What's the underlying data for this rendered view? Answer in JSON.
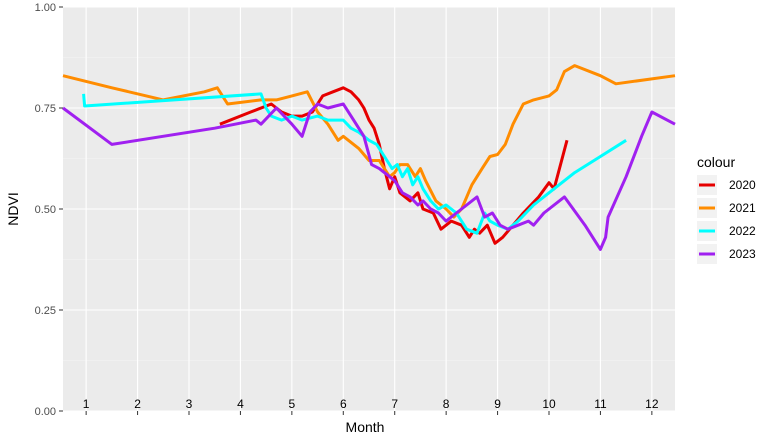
{
  "chart_data": {
    "type": "line",
    "title": "",
    "xlabel": "Month",
    "ylabel": "NDVI",
    "ylim": [
      0,
      1
    ],
    "xlim": [
      0.55,
      12.45
    ],
    "yticks": [
      "0.00",
      "0.25",
      "0.50",
      "0.75",
      "1.00"
    ],
    "yticks_values": [
      0,
      0.25,
      0.5,
      0.75,
      1
    ],
    "month_labels": [
      "1",
      "2",
      "3",
      "4",
      "5",
      "6",
      "7",
      "8",
      "9",
      "10",
      "11",
      "12"
    ],
    "grid": true,
    "legend_title": "colour",
    "legend_position": "right",
    "series": [
      {
        "name": "2020",
        "color": "#e60000",
        "points": [
          [
            3.6,
            0.71
          ],
          [
            4.2,
            0.74
          ],
          [
            4.6,
            0.76
          ],
          [
            4.8,
            0.74
          ],
          [
            5.0,
            0.73
          ],
          [
            5.2,
            0.73
          ],
          [
            5.4,
            0.74
          ],
          [
            5.6,
            0.78
          ],
          [
            5.8,
            0.79
          ],
          [
            6.0,
            0.8
          ],
          [
            6.15,
            0.79
          ],
          [
            6.3,
            0.77
          ],
          [
            6.4,
            0.75
          ],
          [
            6.5,
            0.72
          ],
          [
            6.6,
            0.7
          ],
          [
            6.7,
            0.66
          ],
          [
            6.8,
            0.6
          ],
          [
            6.9,
            0.55
          ],
          [
            7.0,
            0.58
          ],
          [
            7.1,
            0.54
          ],
          [
            7.3,
            0.52
          ],
          [
            7.45,
            0.54
          ],
          [
            7.55,
            0.5
          ],
          [
            7.75,
            0.49
          ],
          [
            7.9,
            0.45
          ],
          [
            8.1,
            0.47
          ],
          [
            8.3,
            0.46
          ],
          [
            8.45,
            0.43
          ],
          [
            8.55,
            0.45
          ],
          [
            8.65,
            0.44
          ],
          [
            8.8,
            0.46
          ],
          [
            8.95,
            0.415
          ],
          [
            9.1,
            0.43
          ],
          [
            9.3,
            0.46
          ],
          [
            9.5,
            0.49
          ],
          [
            9.8,
            0.53
          ],
          [
            10.0,
            0.565
          ],
          [
            10.1,
            0.55
          ],
          [
            10.35,
            0.67
          ]
        ]
      },
      {
        "name": "2021",
        "color": "#ff8c00",
        "points": [
          [
            0.55,
            0.83
          ],
          [
            1.5,
            0.8
          ],
          [
            2.5,
            0.77
          ],
          [
            3.3,
            0.79
          ],
          [
            3.55,
            0.8
          ],
          [
            3.75,
            0.76
          ],
          [
            4.4,
            0.77
          ],
          [
            4.7,
            0.77
          ],
          [
            5.0,
            0.78
          ],
          [
            5.3,
            0.79
          ],
          [
            5.5,
            0.74
          ],
          [
            5.7,
            0.71
          ],
          [
            5.9,
            0.67
          ],
          [
            6.0,
            0.68
          ],
          [
            6.3,
            0.65
          ],
          [
            6.5,
            0.62
          ],
          [
            6.7,
            0.62
          ],
          [
            6.8,
            0.6
          ],
          [
            6.9,
            0.58
          ],
          [
            7.0,
            0.59
          ],
          [
            7.1,
            0.61
          ],
          [
            7.25,
            0.61
          ],
          [
            7.4,
            0.58
          ],
          [
            7.5,
            0.6
          ],
          [
            7.6,
            0.57
          ],
          [
            7.8,
            0.52
          ],
          [
            8.0,
            0.5
          ],
          [
            8.15,
            0.48
          ],
          [
            8.3,
            0.5
          ],
          [
            8.5,
            0.56
          ],
          [
            8.7,
            0.6
          ],
          [
            8.85,
            0.63
          ],
          [
            9.0,
            0.635
          ],
          [
            9.15,
            0.66
          ],
          [
            9.3,
            0.71
          ],
          [
            9.5,
            0.76
          ],
          [
            9.7,
            0.77
          ],
          [
            10.0,
            0.78
          ],
          [
            10.15,
            0.795
          ],
          [
            10.3,
            0.84
          ],
          [
            10.5,
            0.855
          ],
          [
            11.0,
            0.83
          ],
          [
            11.3,
            0.81
          ],
          [
            12.45,
            0.83
          ]
        ]
      },
      {
        "name": "2022",
        "color": "#00ffff",
        "points": [
          [
            0.95,
            0.785
          ],
          [
            0.97,
            0.755
          ],
          [
            4.4,
            0.785
          ],
          [
            4.5,
            0.75
          ],
          [
            4.6,
            0.73
          ],
          [
            4.8,
            0.72
          ],
          [
            5.0,
            0.73
          ],
          [
            5.2,
            0.72
          ],
          [
            5.5,
            0.73
          ],
          [
            5.7,
            0.72
          ],
          [
            6.0,
            0.72
          ],
          [
            6.15,
            0.7
          ],
          [
            6.3,
            0.69
          ],
          [
            6.5,
            0.67
          ],
          [
            6.65,
            0.66
          ],
          [
            6.8,
            0.63
          ],
          [
            6.95,
            0.6
          ],
          [
            7.05,
            0.61
          ],
          [
            7.15,
            0.58
          ],
          [
            7.25,
            0.6
          ],
          [
            7.35,
            0.56
          ],
          [
            7.45,
            0.58
          ],
          [
            7.55,
            0.55
          ],
          [
            7.7,
            0.52
          ],
          [
            7.85,
            0.5
          ],
          [
            8.0,
            0.51
          ],
          [
            8.2,
            0.49
          ],
          [
            8.4,
            0.45
          ],
          [
            8.6,
            0.44
          ],
          [
            8.75,
            0.49
          ],
          [
            8.85,
            0.47
          ],
          [
            9.0,
            0.46
          ],
          [
            9.2,
            0.45
          ],
          [
            9.4,
            0.47
          ],
          [
            9.7,
            0.51
          ],
          [
            10.0,
            0.54
          ],
          [
            10.5,
            0.59
          ],
          [
            11.0,
            0.63
          ],
          [
            11.5,
            0.67
          ]
        ]
      },
      {
        "name": "2023",
        "color": "#a020f0",
        "points": [
          [
            0.55,
            0.75
          ],
          [
            1.5,
            0.66
          ],
          [
            3.5,
            0.7
          ],
          [
            4.3,
            0.72
          ],
          [
            4.4,
            0.71
          ],
          [
            4.7,
            0.75
          ],
          [
            5.0,
            0.71
          ],
          [
            5.2,
            0.68
          ],
          [
            5.35,
            0.74
          ],
          [
            5.5,
            0.76
          ],
          [
            5.7,
            0.75
          ],
          [
            6.0,
            0.76
          ],
          [
            6.2,
            0.72
          ],
          [
            6.4,
            0.68
          ],
          [
            6.55,
            0.61
          ],
          [
            6.7,
            0.6
          ],
          [
            6.8,
            0.59
          ],
          [
            6.9,
            0.58
          ],
          [
            7.0,
            0.57
          ],
          [
            7.15,
            0.54
          ],
          [
            7.3,
            0.53
          ],
          [
            7.45,
            0.51
          ],
          [
            7.55,
            0.52
          ],
          [
            7.7,
            0.5
          ],
          [
            7.85,
            0.49
          ],
          [
            8.0,
            0.47
          ],
          [
            8.2,
            0.49
          ],
          [
            8.4,
            0.51
          ],
          [
            8.6,
            0.53
          ],
          [
            8.75,
            0.48
          ],
          [
            8.9,
            0.49
          ],
          [
            9.05,
            0.46
          ],
          [
            9.2,
            0.45
          ],
          [
            9.4,
            0.46
          ],
          [
            9.6,
            0.47
          ],
          [
            9.7,
            0.46
          ],
          [
            9.9,
            0.49
          ],
          [
            10.3,
            0.53
          ],
          [
            10.7,
            0.46
          ],
          [
            11.0,
            0.4
          ],
          [
            11.1,
            0.43
          ],
          [
            11.15,
            0.48
          ],
          [
            11.5,
            0.58
          ],
          [
            11.8,
            0.68
          ],
          [
            12.0,
            0.74
          ],
          [
            12.45,
            0.71
          ]
        ]
      }
    ]
  }
}
